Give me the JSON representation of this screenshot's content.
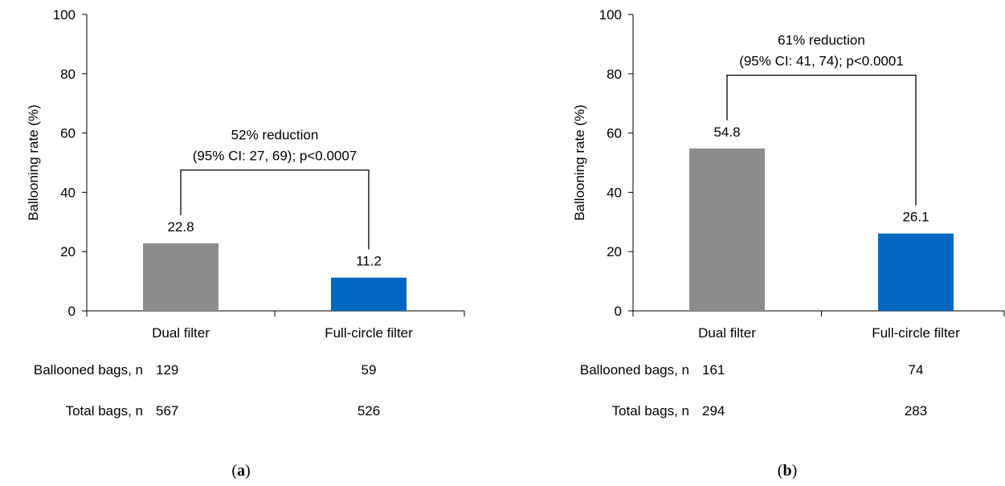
{
  "chart_data": [
    {
      "type": "bar",
      "panel_label": "a",
      "ylabel": "Ballooning rate (%)",
      "ylim": [
        0,
        100
      ],
      "yticks": [
        0,
        20,
        40,
        60,
        80,
        100
      ],
      "categories": [
        "Dual filter",
        "Full-circle filter"
      ],
      "values": [
        22.8,
        11.2
      ],
      "value_labels": [
        "22.8",
        "11.2"
      ],
      "bar_colors": [
        "#8c8c8c",
        "#0066c0"
      ],
      "annotation": {
        "line1": "52% reduction",
        "line2": "(95% CI: 27, 69); p<0.0007",
        "bracket_y": 47.5
      },
      "table": {
        "rows": [
          {
            "label": "Ballooned bags, n",
            "values": [
              "129",
              "59"
            ]
          },
          {
            "label": "Total bags, n",
            "values": [
              "567",
              "526"
            ]
          }
        ]
      },
      "grid": false
    },
    {
      "type": "bar",
      "panel_label": "b",
      "ylabel": "Ballooning rate (%)",
      "ylim": [
        0,
        100
      ],
      "yticks": [
        0,
        20,
        40,
        60,
        80,
        100
      ],
      "categories": [
        "Dual filter",
        "Full-circle filter"
      ],
      "values": [
        54.8,
        26.1
      ],
      "value_labels": [
        "54.8",
        "26.1"
      ],
      "bar_colors": [
        "#8c8c8c",
        "#0066c0"
      ],
      "annotation": {
        "line1": "61% reduction",
        "line2": "(95% CI: 41, 74); p<0.0001",
        "bracket_y": 79.5
      },
      "table": {
        "rows": [
          {
            "label": "Ballooned bags, n",
            "values": [
              "161",
              "74"
            ]
          },
          {
            "label": "Total bags, n",
            "values": [
              "294",
              "283"
            ]
          }
        ]
      },
      "grid": false
    }
  ]
}
